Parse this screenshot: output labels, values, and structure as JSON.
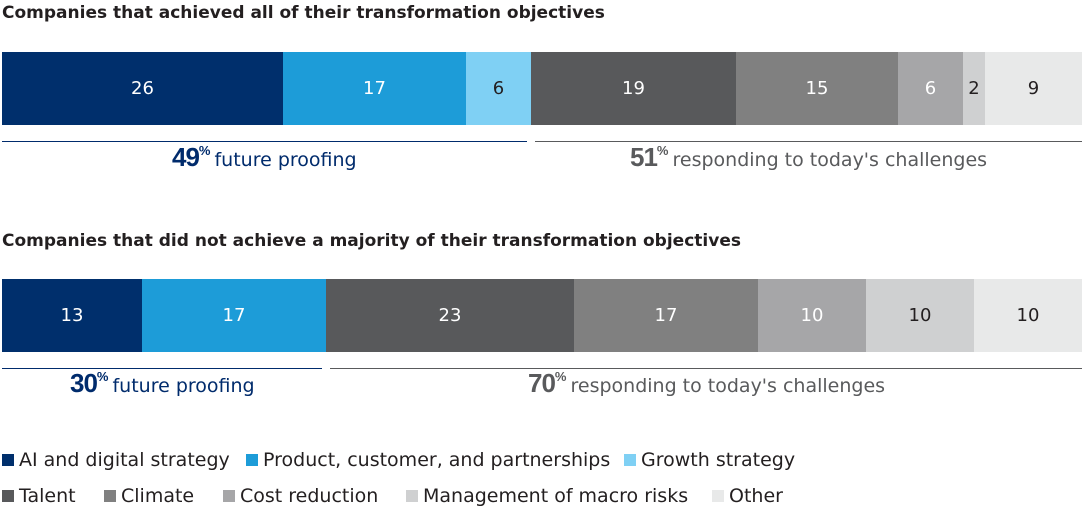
{
  "chart_data": [
    {
      "type": "bar",
      "orientation": "horizontal-stacked-100",
      "title": "Companies that achieved all of their transformation objectives",
      "series": [
        {
          "name": "AI and digital strategy",
          "value": 26
        },
        {
          "name": "Product, customer, and partnerships",
          "value": 17
        },
        {
          "name": "Growth strategy",
          "value": 6
        },
        {
          "name": "Talent",
          "value": 19
        },
        {
          "name": "Climate",
          "value": 15
        },
        {
          "name": "Cost reduction",
          "value": 6
        },
        {
          "name": "Management of macro risks",
          "value": 2
        },
        {
          "name": "Other",
          "value": 9
        }
      ],
      "groups": [
        {
          "pct": "49",
          "pct_sign": "%",
          "label": "future proofing",
          "start": 0,
          "end": 49,
          "color": "#002b6c"
        },
        {
          "pct": "51",
          "pct_sign": "%",
          "label": "responding to today's challenges",
          "start": 49,
          "end": 100,
          "color": "#595a5c"
        }
      ]
    },
    {
      "type": "bar",
      "orientation": "horizontal-stacked-100",
      "title": "Companies that did not achieve a majority of their transformation objectives",
      "series": [
        {
          "name": "AI and digital strategy",
          "value": 13
        },
        {
          "name": "Product, customer, and partnerships",
          "value": 17
        },
        {
          "name": "Talent",
          "value": 23
        },
        {
          "name": "Climate",
          "value": 17
        },
        {
          "name": "Cost reduction",
          "value": 10
        },
        {
          "name": "Management of macro risks",
          "value": 10
        },
        {
          "name": "Other",
          "value": 10
        }
      ],
      "groups": [
        {
          "pct": "30",
          "pct_sign": "%",
          "label": "future proofing",
          "start": 0,
          "end": 30,
          "color": "#002b6c"
        },
        {
          "pct": "70",
          "pct_sign": "%",
          "label": "responding to today's challenges",
          "start": 30,
          "end": 100,
          "color": "#595a5c"
        }
      ]
    }
  ],
  "legend": [
    {
      "name": "AI and digital strategy",
      "color": "#002f6c",
      "text_color": "#ffffff"
    },
    {
      "name": "Product, customer, and partnerships",
      "color": "#1d9cd8",
      "text_color": "#ffffff"
    },
    {
      "name": "Growth strategy",
      "color": "#7fd0f4",
      "text_color": "#231f20"
    },
    {
      "name": "Talent",
      "color": "#58595b",
      "text_color": "#ffffff"
    },
    {
      "name": "Climate",
      "color": "#808080",
      "text_color": "#ffffff"
    },
    {
      "name": "Cost reduction",
      "color": "#a6a6a8",
      "text_color": "#ffffff"
    },
    {
      "name": "Management of macro risks",
      "color": "#cfd0d1",
      "text_color": "#231f20"
    },
    {
      "name": "Other",
      "color": "#e8e9e9",
      "text_color": "#231f20"
    }
  ]
}
